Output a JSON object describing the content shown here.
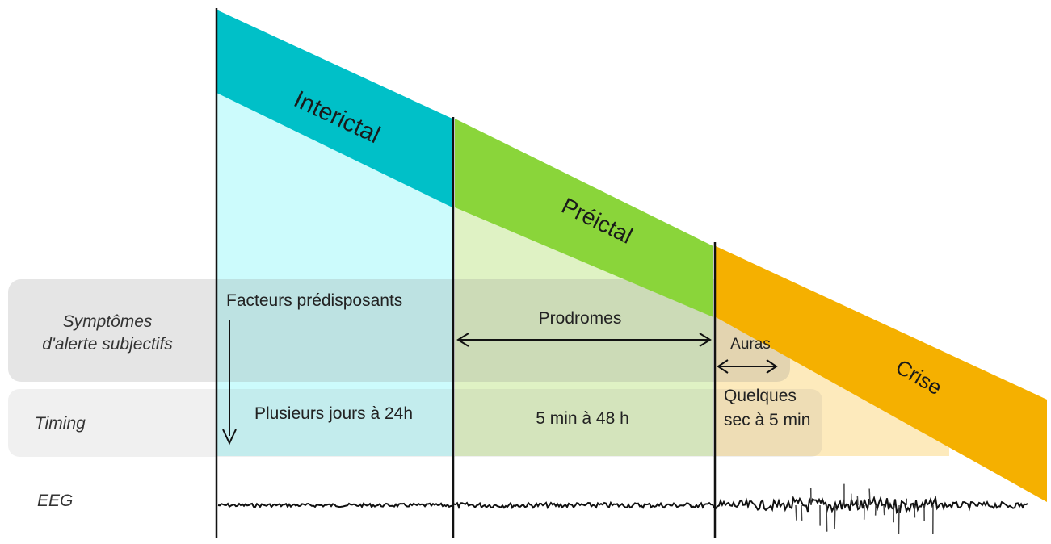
{
  "phases": {
    "interictal": {
      "label": "Interictal",
      "color": "#00c0c8",
      "fill": "#ccfbfc"
    },
    "preictal": {
      "label": "Préictal",
      "color": "#8ad53a",
      "fill": "#dff2c4"
    },
    "crise": {
      "label": "Crise",
      "color": "#f5b000",
      "fill": "#fde6b0"
    }
  },
  "rows": {
    "symptomes": {
      "label_line1": "Symptômes",
      "label_line2": "d'alerte subjectifs"
    },
    "timing": {
      "label": "Timing"
    },
    "eeg": {
      "label": "EEG"
    }
  },
  "annotations": {
    "facteurs": "Facteurs prédisposants",
    "prodromes": "Prodromes",
    "auras": "Auras",
    "timing_interictal": "Plusieurs jours à 24h",
    "timing_preictal": "5 min à 48 h",
    "timing_crise_line1": "Quelques",
    "timing_crise_line2": "sec à 5 min"
  }
}
